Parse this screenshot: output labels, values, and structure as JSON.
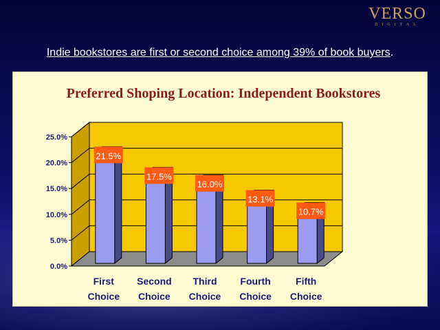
{
  "headline": {
    "text": "Indie bookstores are first or second choice among 39% of book buyers",
    "suffix": "."
  },
  "logo": {
    "main": "VERSO",
    "sub": "DIGITAL"
  },
  "colors": {
    "wall": "#f6c800",
    "floor": "#8c8c8c",
    "bar_front": "#9b9bf0",
    "bar_side": "#4a4a8a",
    "bar_top": "#b0b0f5",
    "label_bg": "#ff5a14",
    "title": "#8b1a1a",
    "axis_text": "#1a1a7a"
  },
  "chart_data": {
    "type": "bar",
    "title": "Preferred Shoping Location: Independent Bookstores",
    "categories": [
      "First Choice",
      "Second Choice",
      "Third Choice",
      "Fourth Choice",
      "Fifth Choice"
    ],
    "category_lines": [
      [
        "First",
        "Choice"
      ],
      [
        "Second",
        "Choice"
      ],
      [
        "Third",
        "Choice"
      ],
      [
        "Fourth",
        "Choice"
      ],
      [
        "Fifth",
        "Choice"
      ]
    ],
    "values": [
      21.5,
      17.5,
      16.0,
      13.1,
      10.7
    ],
    "data_labels": [
      "21.5%",
      "17.5%",
      "16.0%",
      "13.1%",
      "10.7%"
    ],
    "y_ticks": [
      "0.0%",
      "5.0%",
      "10.0%",
      "15.0%",
      "20.0%",
      "25.0%"
    ],
    "y_tick_values": [
      0,
      5,
      10,
      15,
      20,
      25
    ],
    "ylim": [
      0,
      25
    ],
    "xlabel": "",
    "ylabel": "",
    "grid": true
  }
}
